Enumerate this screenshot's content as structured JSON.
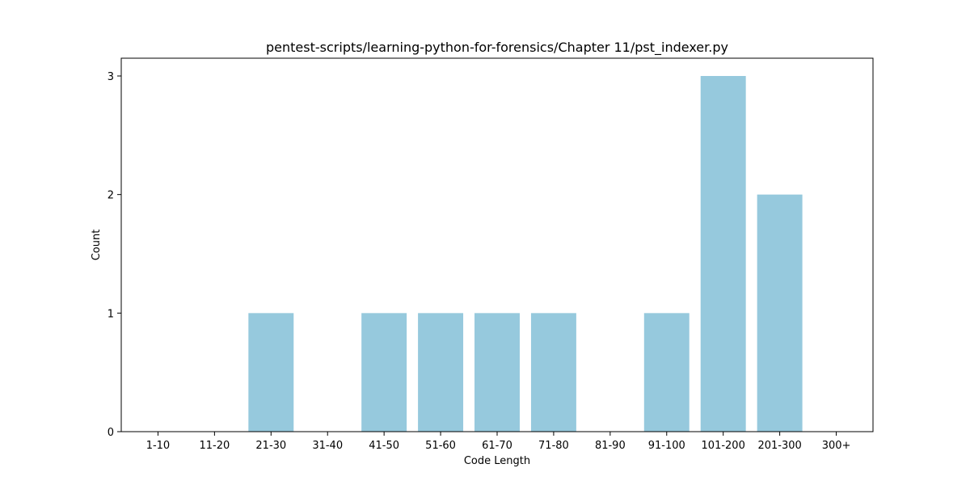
{
  "chart_data": {
    "type": "bar",
    "title": "pentest-scripts/learning-python-for-forensics/Chapter 11/pst_indexer.py",
    "xlabel": "Code Length",
    "ylabel": "Count",
    "categories": [
      "1-10",
      "11-20",
      "21-30",
      "31-40",
      "41-50",
      "51-60",
      "61-70",
      "71-80",
      "81-90",
      "91-100",
      "101-200",
      "201-300",
      "300+"
    ],
    "values": [
      0,
      0,
      1,
      0,
      1,
      1,
      1,
      1,
      0,
      1,
      3,
      2,
      0
    ],
    "yticks": [
      0,
      1,
      2,
      3
    ],
    "ylim": [
      0,
      3.15
    ],
    "bar_color": "#96c9dd",
    "grid": false,
    "legend": "none"
  }
}
